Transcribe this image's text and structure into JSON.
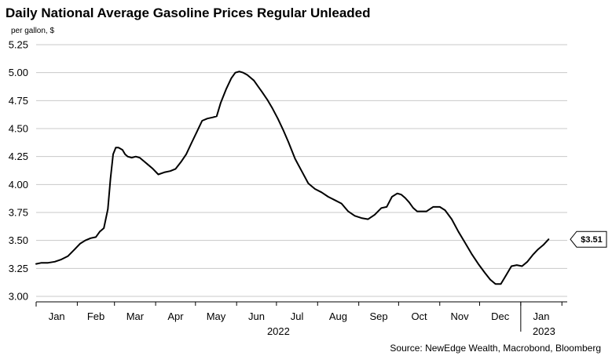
{
  "chart_data": {
    "type": "line",
    "title": "Daily National Average Gasoline Prices Regular Unleaded",
    "ylabel": "per gallon, $",
    "xlabel": "",
    "source": "Source: NewEdge Wealth, Macrobond, Bloomberg",
    "ylim": [
      3.0,
      5.25
    ],
    "yticks": [
      3.0,
      3.25,
      3.5,
      3.75,
      4.0,
      4.25,
      4.5,
      4.75,
      5.0,
      5.25
    ],
    "ytick_labels": [
      "3.00",
      "3.25",
      "3.50",
      "3.75",
      "4.00",
      "4.25",
      "4.50",
      "4.75",
      "5.00",
      "5.25"
    ],
    "xlim": [
      "2022-01-01",
      "2023-02-05"
    ],
    "month_labels": [
      "Jan",
      "Feb",
      "Mar",
      "Apr",
      "May",
      "Jun",
      "Jul",
      "Aug",
      "Sep",
      "Oct",
      "Nov",
      "Dec",
      "Jan"
    ],
    "year_labels": [
      "2022",
      "2023"
    ],
    "grid": true,
    "last_value_label": "$3.51",
    "series": [
      {
        "name": "",
        "color": "#000000",
        "x": [
          "2022-01-01",
          "2022-01-05",
          "2022-01-10",
          "2022-01-15",
          "2022-01-20",
          "2022-01-25",
          "2022-01-30",
          "2022-02-03",
          "2022-02-07",
          "2022-02-11",
          "2022-02-15",
          "2022-02-18",
          "2022-02-21",
          "2022-02-24",
          "2022-02-26",
          "2022-02-28",
          "2022-03-02",
          "2022-03-04",
          "2022-03-07",
          "2022-03-09",
          "2022-03-11",
          "2022-03-14",
          "2022-03-17",
          "2022-03-20",
          "2022-03-23",
          "2022-03-26",
          "2022-03-30",
          "2022-04-03",
          "2022-04-08",
          "2022-04-12",
          "2022-04-16",
          "2022-04-20",
          "2022-04-24",
          "2022-04-28",
          "2022-05-02",
          "2022-05-06",
          "2022-05-10",
          "2022-05-14",
          "2022-05-17",
          "2022-05-20",
          "2022-05-24",
          "2022-05-28",
          "2022-05-31",
          "2022-06-03",
          "2022-06-06",
          "2022-06-09",
          "2022-06-11",
          "2022-06-14",
          "2022-06-17",
          "2022-06-20",
          "2022-06-24",
          "2022-06-28",
          "2022-07-02",
          "2022-07-06",
          "2022-07-10",
          "2022-07-15",
          "2022-07-20",
          "2022-07-25",
          "2022-07-30",
          "2022-08-04",
          "2022-08-09",
          "2022-08-14",
          "2022-08-19",
          "2022-08-24",
          "2022-08-29",
          "2022-09-03",
          "2022-09-08",
          "2022-09-13",
          "2022-09-18",
          "2022-09-22",
          "2022-09-26",
          "2022-09-30",
          "2022-10-03",
          "2022-10-06",
          "2022-10-09",
          "2022-10-12",
          "2022-10-15",
          "2022-10-18",
          "2022-10-22",
          "2022-10-27",
          "2022-11-01",
          "2022-11-05",
          "2022-11-10",
          "2022-11-15",
          "2022-11-20",
          "2022-11-25",
          "2022-11-30",
          "2022-12-05",
          "2022-12-09",
          "2022-12-13",
          "2022-12-17",
          "2022-12-21",
          "2022-12-25",
          "2022-12-29",
          "2023-01-02",
          "2023-01-06",
          "2023-01-10",
          "2023-01-14",
          "2023-01-18",
          "2023-01-22"
        ],
        "values": [
          3.29,
          3.3,
          3.3,
          3.31,
          3.33,
          3.36,
          3.42,
          3.47,
          3.5,
          3.52,
          3.53,
          3.58,
          3.61,
          3.78,
          4.05,
          4.27,
          4.33,
          4.33,
          4.31,
          4.27,
          4.25,
          4.24,
          4.25,
          4.24,
          4.21,
          4.18,
          4.14,
          4.09,
          4.11,
          4.12,
          4.14,
          4.2,
          4.27,
          4.37,
          4.47,
          4.57,
          4.59,
          4.6,
          4.61,
          4.73,
          4.85,
          4.95,
          5.0,
          5.01,
          5.0,
          4.98,
          4.96,
          4.93,
          4.88,
          4.83,
          4.76,
          4.68,
          4.59,
          4.49,
          4.38,
          4.23,
          4.12,
          4.01,
          3.96,
          3.93,
          3.89,
          3.86,
          3.83,
          3.76,
          3.72,
          3.7,
          3.69,
          3.73,
          3.79,
          3.8,
          3.89,
          3.92,
          3.91,
          3.88,
          3.84,
          3.79,
          3.76,
          3.76,
          3.76,
          3.8,
          3.8,
          3.77,
          3.69,
          3.58,
          3.48,
          3.38,
          3.29,
          3.21,
          3.15,
          3.11,
          3.11,
          3.19,
          3.27,
          3.28,
          3.27,
          3.31,
          3.37,
          3.42,
          3.46,
          3.51
        ]
      }
    ]
  }
}
